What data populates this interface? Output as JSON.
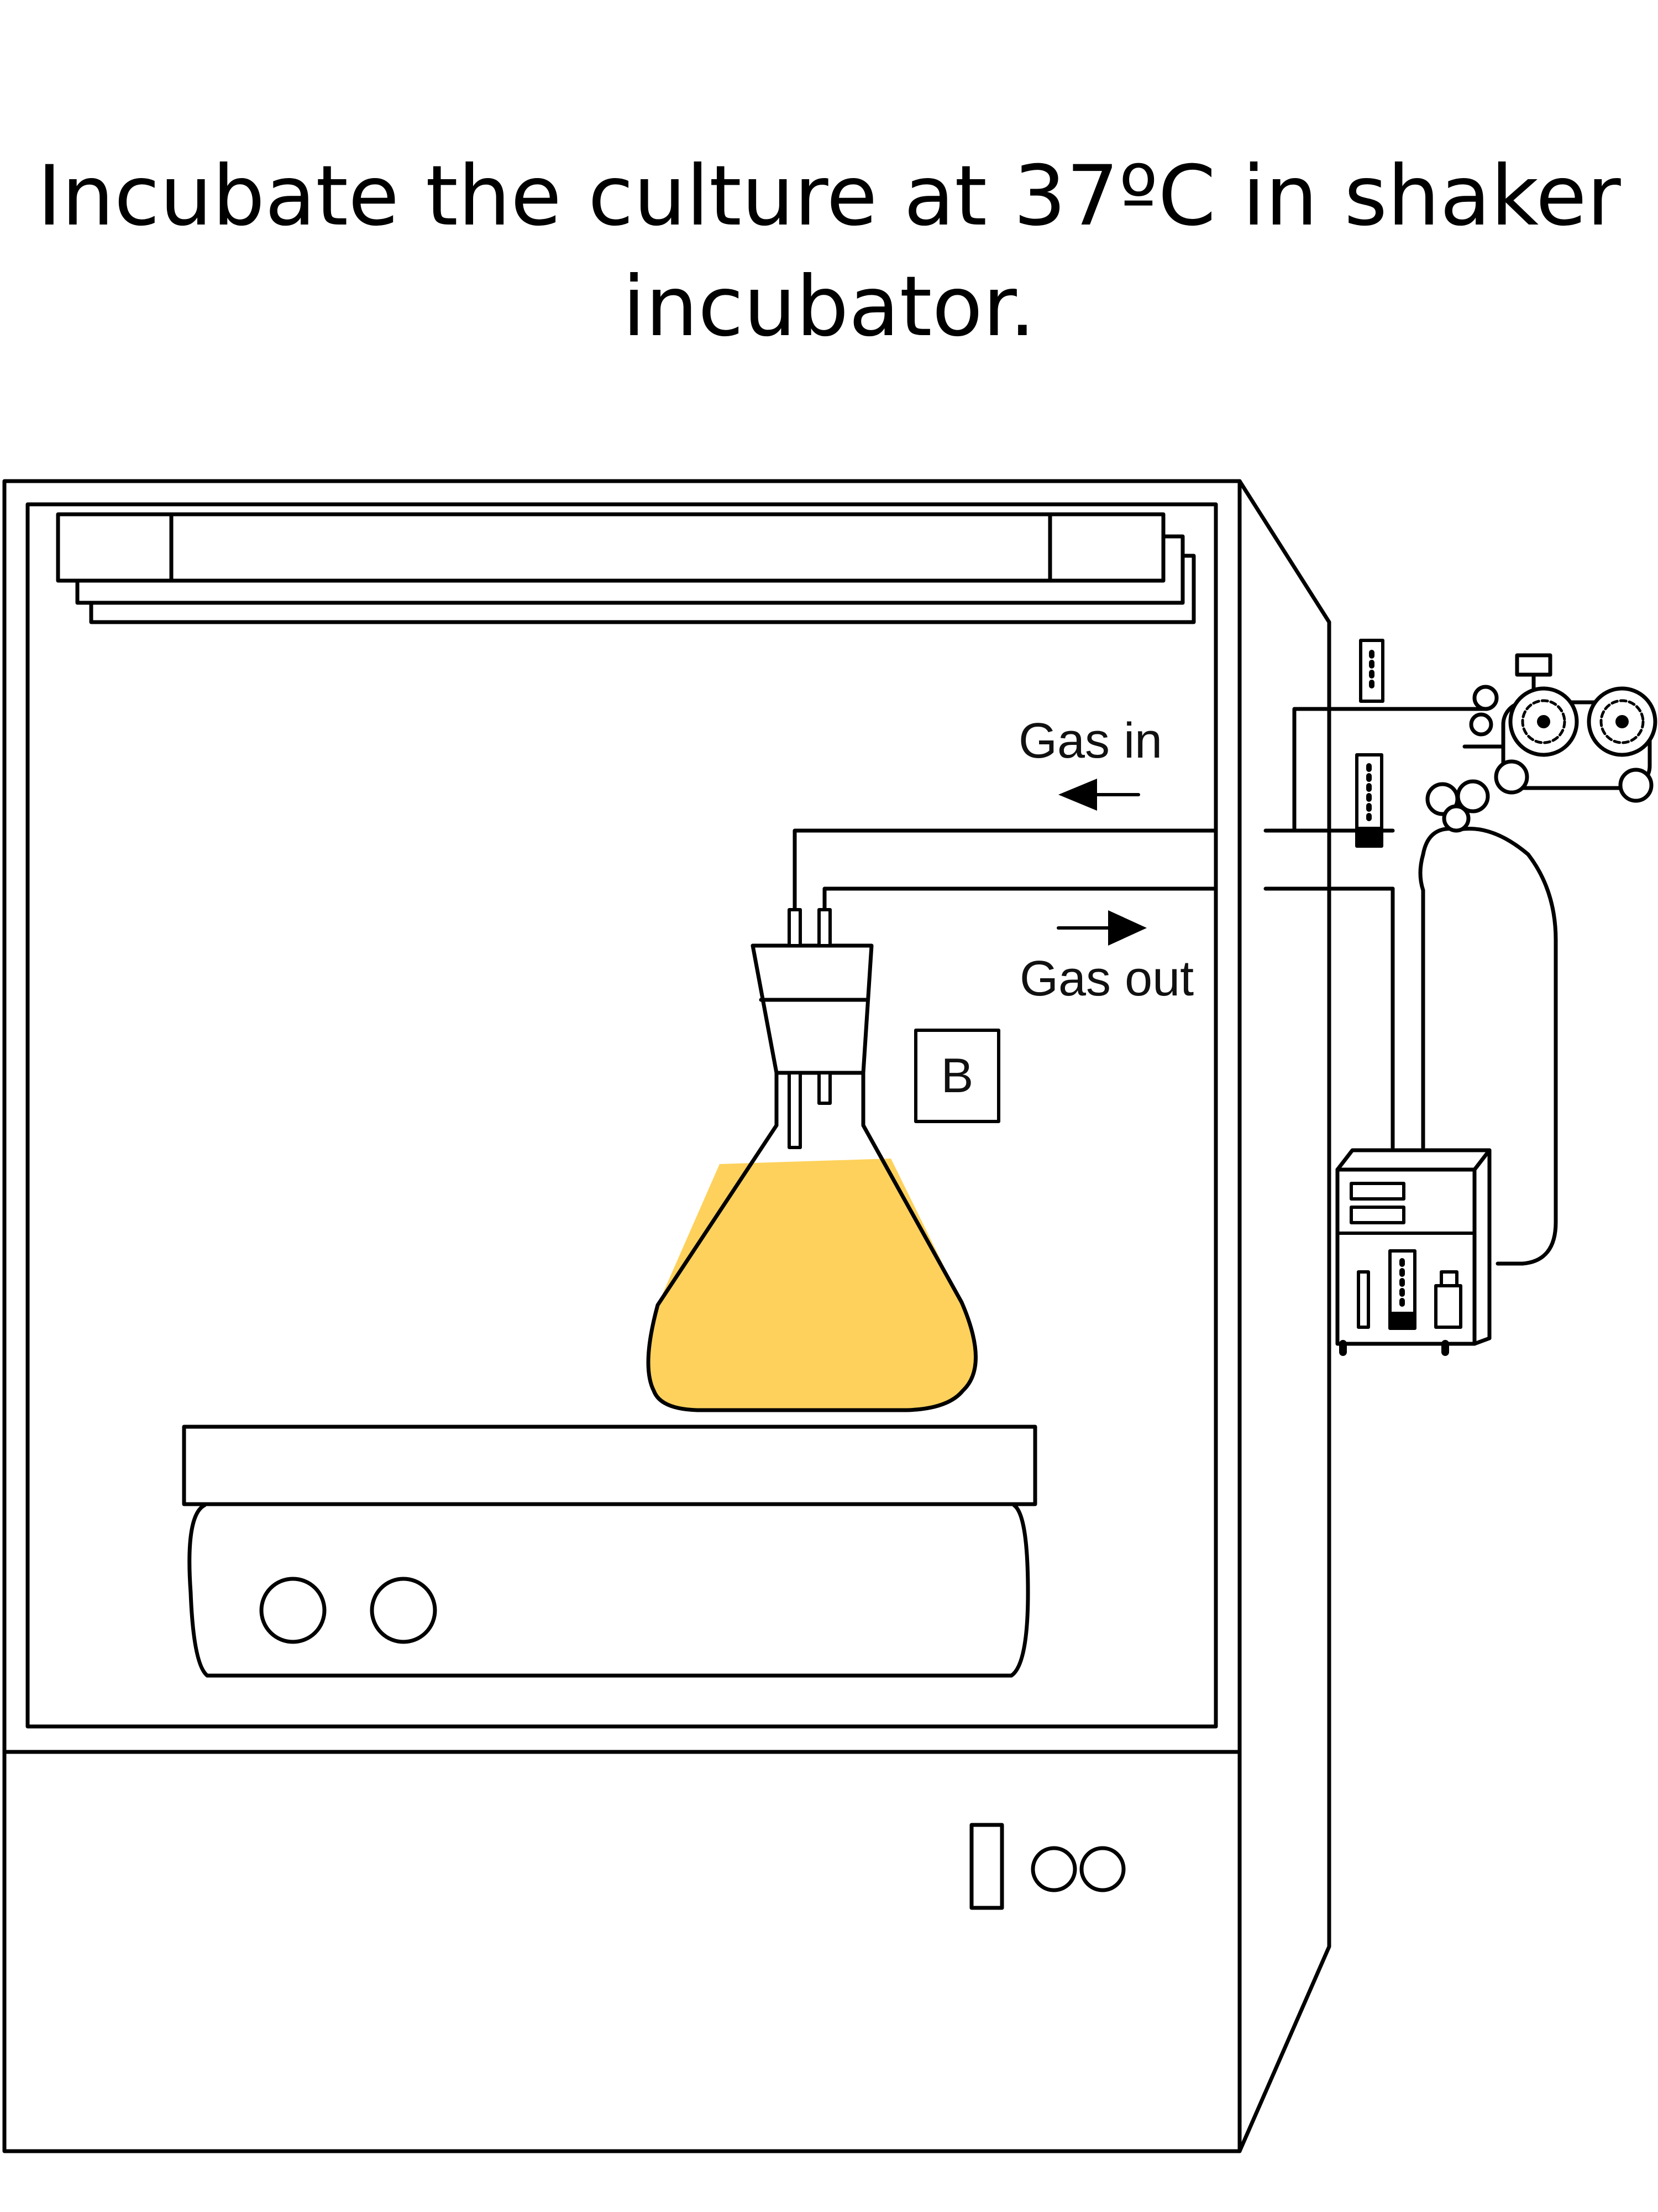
{
  "caption": {
    "line1": "Incubate the culture at 37ºC in shaker",
    "line2": "incubator."
  },
  "labels": {
    "gas_in": "Gas in",
    "gas_out": "Gas out",
    "flask_marker": "B"
  },
  "colors": {
    "culture": "#FDD15B",
    "line": "#000000"
  },
  "icons": [
    "arrow-left-icon",
    "arrow-right-icon",
    "gas-cylinder-icon",
    "gas-pump-icon",
    "flowmeter-icon"
  ]
}
